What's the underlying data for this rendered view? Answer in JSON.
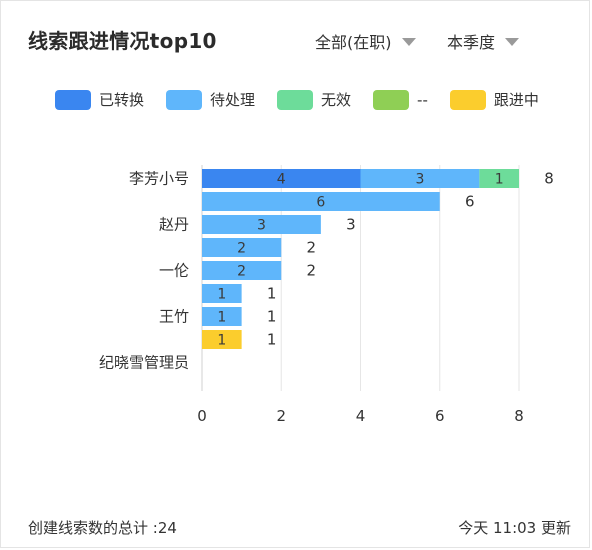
{
  "header": {
    "title": "线索跟进情况top10",
    "scope_label": "全部(在职)",
    "period_label": "本季度"
  },
  "legend": [
    {
      "label": "已转换",
      "color": "#3a86f0"
    },
    {
      "label": "待处理",
      "color": "#5fb6fb"
    },
    {
      "label": "无效",
      "color": "#6ddc9a"
    },
    {
      "label": "--",
      "color": "#8fcf55"
    },
    {
      "label": "跟进中",
      "color": "#fbcd2d"
    }
  ],
  "chart_data": {
    "type": "bar",
    "orientation": "horizontal",
    "stacked": true,
    "categories": [
      "李芳小号",
      "",
      "赵丹",
      "",
      "一伦",
      "",
      "王竹",
      "",
      "纪晓雪管理员"
    ],
    "series": [
      {
        "name": "已转换",
        "color": "#3a86f0",
        "values": [
          4,
          0,
          0,
          0,
          0,
          0,
          0,
          0,
          0
        ]
      },
      {
        "name": "待处理",
        "color": "#5fb6fb",
        "values": [
          3,
          6,
          3,
          2,
          2,
          1,
          1,
          0,
          0
        ]
      },
      {
        "name": "无效",
        "color": "#6ddc9a",
        "values": [
          1,
          0,
          0,
          0,
          0,
          0,
          0,
          0,
          0
        ]
      },
      {
        "name": "--",
        "color": "#8fcf55",
        "values": [
          0,
          0,
          0,
          0,
          0,
          0,
          0,
          0,
          0
        ]
      },
      {
        "name": "跟进中",
        "color": "#fbcd2d",
        "values": [
          0,
          0,
          0,
          0,
          0,
          0,
          0,
          1,
          0
        ]
      }
    ],
    "totals": [
      8,
      6,
      3,
      2,
      2,
      1,
      1,
      1,
      null
    ],
    "xticks": [
      0,
      2,
      4,
      6,
      8
    ],
    "xlim": [
      0,
      8
    ]
  },
  "footer": {
    "total_label": "创建线索数的总计 :24",
    "updated_label": "今天 11:03 更新"
  }
}
